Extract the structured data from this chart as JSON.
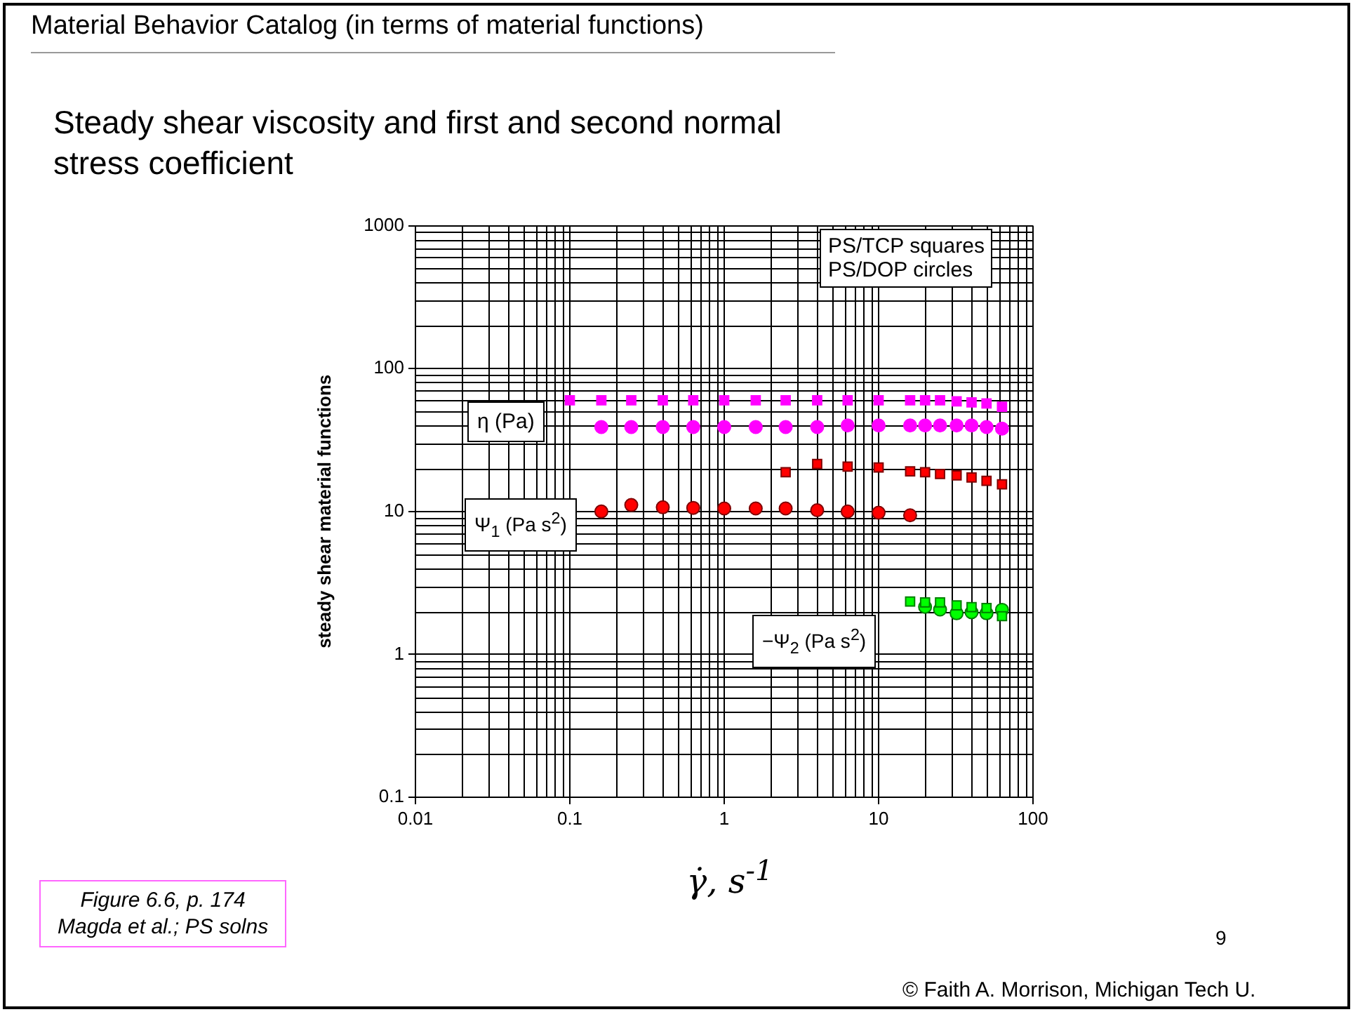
{
  "chart_data": {
    "type": "scatter",
    "title": "Material Behavior Catalog (in terms of material functions)",
    "subtitle": "Steady shear viscosity and first and second normal stress coefficient",
    "xlabel": "γ̇, s$^{-1}$",
    "ylabel": "steady shear material functions",
    "log": "xy",
    "grid": true,
    "legend": false,
    "xlim": [
      0.01,
      100
    ],
    "xticks": [
      0.01,
      0.1,
      1,
      10,
      100
    ],
    "ylim": [
      0.1,
      1000
    ],
    "yticks": [
      0.1,
      1,
      10,
      100,
      1000
    ],
    "series": [
      {
        "marker": "square",
        "color": "#ff00ff",
        "x": [
          0.1,
          0.16,
          0.25,
          0.4,
          0.63,
          1,
          1.6,
          2.5,
          4,
          6.3,
          10,
          16,
          20,
          25,
          32,
          40,
          50,
          63
        ],
        "values": [
          60,
          60,
          60,
          60,
          60,
          60,
          60,
          60,
          60,
          60,
          60,
          60,
          60,
          60,
          59,
          58,
          57,
          54
        ]
      },
      {
        "marker": "circle",
        "color": "#ff00ff",
        "x": [
          0.16,
          0.25,
          0.4,
          0.63,
          1,
          1.6,
          2.5,
          4,
          6.3,
          10,
          16,
          20,
          25,
          32,
          40,
          50,
          63
        ],
        "values": [
          39,
          39,
          39,
          39,
          39,
          39,
          39,
          39,
          40,
          40,
          40,
          40,
          40,
          40,
          40,
          39,
          38
        ]
      },
      {
        "marker": "square",
        "color": "#ff0000",
        "x": [
          2.5,
          4,
          6.3,
          10,
          16,
          20,
          25,
          32,
          40,
          50,
          63
        ],
        "values": [
          18.8,
          21.5,
          20.6,
          20.3,
          19.1,
          18.8,
          18.3,
          17.9,
          17.3,
          16.4,
          15.5
        ]
      },
      {
        "marker": "circle",
        "color": "#ff0000",
        "x": [
          0.16,
          0.25,
          0.4,
          0.63,
          1,
          1.6,
          2.5,
          4,
          6.3,
          10,
          16
        ],
        "values": [
          10,
          11.1,
          10.7,
          10.6,
          10.5,
          10.5,
          10.5,
          10.2,
          10,
          9.8,
          9.4
        ]
      },
      {
        "marker": "square",
        "color": "#00ff00",
        "x": [
          16,
          20,
          25,
          32,
          40,
          50,
          63
        ],
        "values": [
          2.34,
          2.31,
          2.31,
          2.2,
          2.14,
          2.11,
          1.85
        ]
      },
      {
        "marker": "circle",
        "color": "#00ff00",
        "x": [
          20,
          25,
          32,
          40,
          50,
          63
        ],
        "values": [
          2.15,
          2.06,
          1.94,
          1.97,
          1.94,
          2.05
        ]
      }
    ],
    "annotations": [
      "PS/TCP squares\nPS/DOP circles",
      "η (Pa)",
      "Ψ$_{1}$ (Pa s$^{2}$)",
      "−Ψ$_{2}$ (Pa s$^{2}$)",
      "Figure 6.6, p. 174\nMagda et al.; PS solns",
      "9",
      "© Faith A. Morrison, Michigan Tech U."
    ]
  }
}
